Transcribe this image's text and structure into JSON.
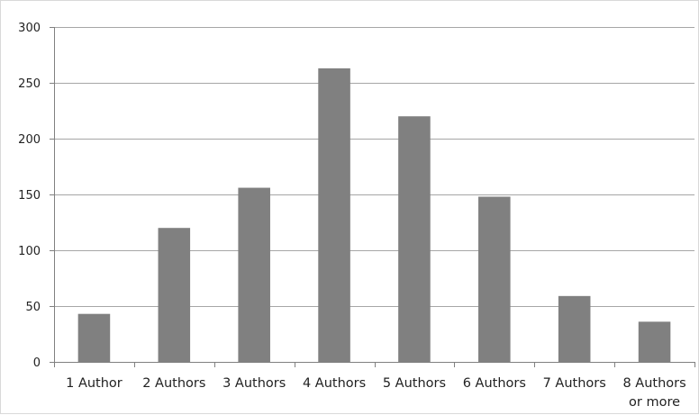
{
  "chart_data": {
    "type": "bar",
    "title": "",
    "xlabel": "",
    "ylabel": "",
    "categories": [
      [
        "1 Author"
      ],
      [
        "2 Authors"
      ],
      [
        "3 Authors"
      ],
      [
        "4 Authors"
      ],
      [
        "5 Authors"
      ],
      [
        "6 Authors"
      ],
      [
        "7 Authors"
      ],
      [
        "8 Authors",
        "or more"
      ]
    ],
    "values": [
      43,
      120,
      156,
      263,
      220,
      148,
      59,
      36
    ],
    "ylim": [
      0,
      300
    ],
    "yticks": [
      0,
      50,
      100,
      150,
      200,
      250,
      300
    ],
    "grid": true,
    "legend": "none",
    "colors": {
      "bar": "#808080",
      "grid": "#a6a6a6",
      "axis": "#808080"
    }
  }
}
